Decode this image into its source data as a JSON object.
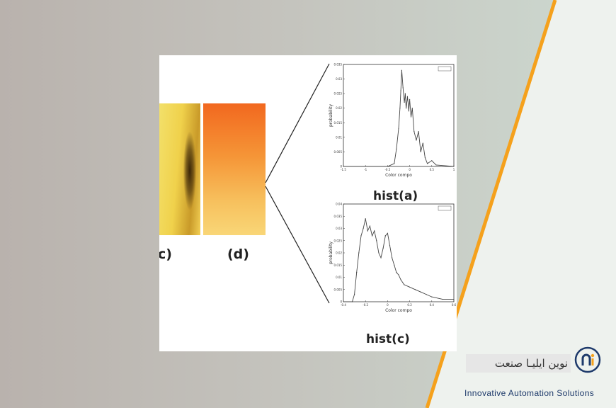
{
  "figure": {
    "panel_labels": {
      "c": "c)",
      "d": "(d)"
    },
    "hist_titles": {
      "a": "hist(a)",
      "c": "hist(c)"
    }
  },
  "chart_data": [
    {
      "type": "line",
      "title": "hist(a)",
      "xlabel": "Color compo",
      "ylabel": "probability",
      "xlim": [
        -1.5,
        1
      ],
      "ylim": [
        0,
        0.035
      ],
      "xticks": [
        "-1.5",
        "-1",
        "-0.5",
        "0",
        "0.5",
        "1"
      ],
      "yticks": [
        "0",
        "0.005",
        "0.01",
        "0.015",
        "0.02",
        "0.025",
        "0.03",
        "0.035"
      ],
      "x": [
        -1.5,
        -0.5,
        -0.35,
        -0.3,
        -0.25,
        -0.22,
        -0.2,
        -0.18,
        -0.15,
        -0.12,
        -0.1,
        -0.08,
        -0.05,
        -0.02,
        0,
        0.03,
        0.06,
        0.1,
        0.15,
        0.2,
        0.25,
        0.3,
        0.35,
        0.4,
        0.5,
        0.6,
        1
      ],
      "series": [
        {
          "values": [
            0,
            0,
            0.001,
            0.006,
            0.013,
            0.02,
            0.026,
            0.033,
            0.027,
            0.022,
            0.025,
            0.02,
            0.024,
            0.019,
            0.023,
            0.017,
            0.02,
            0.012,
            0.009,
            0.012,
            0.005,
            0.008,
            0.003,
            0.001,
            0.002,
            0.0005,
            0
          ]
        }
      ],
      "legend": "top-right"
    },
    {
      "type": "line",
      "title": "hist(c)",
      "xlabel": "Color compo",
      "ylabel": "probability",
      "xlim": [
        -0.4,
        0.6
      ],
      "ylim": [
        0,
        0.04
      ],
      "xticks": [
        "-0.4",
        "-0.2",
        "0",
        "0.2",
        "0.4",
        "0.6"
      ],
      "yticks": [
        "0",
        "0.005",
        "0.01",
        "0.015",
        "0.02",
        "0.025",
        "0.03",
        "0.035",
        "0.04"
      ],
      "x": [
        -0.4,
        -0.32,
        -0.3,
        -0.28,
        -0.26,
        -0.24,
        -0.22,
        -0.2,
        -0.18,
        -0.16,
        -0.14,
        -0.12,
        -0.1,
        -0.08,
        -0.06,
        -0.04,
        -0.02,
        0,
        0.02,
        0.04,
        0.06,
        0.08,
        0.1,
        0.12,
        0.15,
        0.2,
        0.25,
        0.3,
        0.35,
        0.4,
        0.5,
        0.6
      ],
      "series": [
        {
          "values": [
            0,
            0,
            0.003,
            0.012,
            0.02,
            0.027,
            0.03,
            0.034,
            0.029,
            0.031,
            0.027,
            0.029,
            0.025,
            0.02,
            0.018,
            0.022,
            0.027,
            0.028,
            0.023,
            0.018,
            0.015,
            0.012,
            0.011,
            0.009,
            0.007,
            0.006,
            0.005,
            0.004,
            0.003,
            0.002,
            0.001,
            0.001
          ]
        }
      ],
      "legend": "top-right"
    }
  ],
  "brand": {
    "name_fa": "نوین ایلیـا صنعت",
    "tagline": "Innovative Automation Solutions",
    "colors": {
      "orange": "#f5a11c",
      "navy": "#1e3a6b"
    }
  }
}
